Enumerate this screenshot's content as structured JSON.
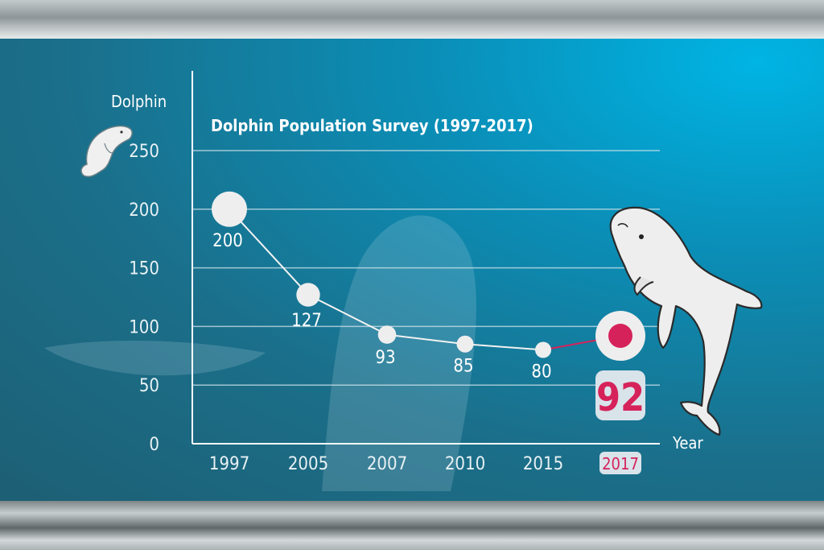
{
  "colors": {
    "background_top": "#00b4e4",
    "background_bottom": "#1d5f74",
    "marker": "#eeeeee",
    "highlight": "#d6225a",
    "highlight_box": "#d9e3ea",
    "gridline": "#cfe3ea"
  },
  "icons": [
    "small-dolphin-icon",
    "large-dolphin-illustration"
  ],
  "chart_data": {
    "type": "line",
    "title": "Dolphin Population Survey (1997-2017)",
    "ylabel": "Dolphin",
    "xlabel": "Year",
    "categories": [
      "1997",
      "2005",
      "2007",
      "2010",
      "2015",
      "2017"
    ],
    "values": [
      200,
      127,
      93,
      85,
      80,
      92
    ],
    "data_labels": [
      "200",
      "127",
      "93",
      "85",
      "80",
      "92"
    ],
    "yticks": [
      "0",
      "50",
      "100",
      "150",
      "200",
      "250"
    ],
    "ylim": [
      0,
      250
    ],
    "grid": true,
    "highlight_category": "2017",
    "legend": "none"
  }
}
